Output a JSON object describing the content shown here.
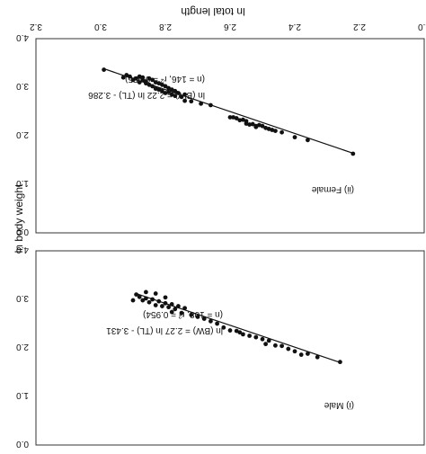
{
  "chart_data": {
    "type": "scatter",
    "xlabel": "ln total length",
    "ylabel": "ln body weight",
    "xlim": [
      2.0,
      3.2
    ],
    "x_ticks": [
      "2.0",
      "2.2",
      "2.4",
      "2.6",
      "2.8",
      "3.0",
      "3.2"
    ],
    "panels": [
      {
        "label": "(ii) Female",
        "equation": "ln (BW) = 2.22 ln (TL) - 3.286",
        "stats": "(n = 146, r² = 0.955)",
        "ylim": [
          0,
          4.0
        ],
        "y_ticks": [
          "0.0",
          "1.0",
          "2.0",
          "3.0",
          "4.0"
        ],
        "line": {
          "x": [
            2.22,
            2.99
          ],
          "y": [
            1.64,
            3.38
          ]
        },
        "series": [
          {
            "values": [
              [
                2.22,
                1.63
              ],
              [
                2.36,
                1.91
              ],
              [
                2.4,
                1.97
              ],
              [
                2.44,
                2.07
              ],
              [
                2.46,
                2.1
              ],
              [
                2.47,
                2.12
              ],
              [
                2.48,
                2.14
              ],
              [
                2.49,
                2.16
              ],
              [
                2.5,
                2.2
              ],
              [
                2.51,
                2.22
              ],
              [
                2.52,
                2.2
              ],
              [
                2.53,
                2.24
              ],
              [
                2.54,
                2.23
              ],
              [
                2.55,
                2.3
              ],
              [
                2.56,
                2.33
              ],
              [
                2.57,
                2.32
              ],
              [
                2.58,
                2.36
              ],
              [
                2.59,
                2.38
              ],
              [
                2.6,
                2.38
              ],
              [
                2.55,
                2.25
              ],
              [
                2.52,
                2.18
              ],
              [
                2.66,
                2.63
              ],
              [
                2.69,
                2.66
              ],
              [
                2.72,
                2.71
              ],
              [
                2.74,
                2.85
              ],
              [
                2.74,
                2.72
              ],
              [
                2.75,
                2.8
              ],
              [
                2.76,
                2.88
              ],
              [
                2.77,
                2.82
              ],
              [
                2.77,
                2.92
              ],
              [
                2.78,
                2.85
              ],
              [
                2.78,
                2.95
              ],
              [
                2.79,
                2.9
              ],
              [
                2.79,
                2.98
              ],
              [
                2.8,
                2.88
              ],
              [
                2.8,
                3.02
              ],
              [
                2.81,
                2.92
              ],
              [
                2.81,
                3.05
              ],
              [
                2.82,
                2.95
              ],
              [
                2.82,
                3.08
              ],
              [
                2.83,
                2.97
              ],
              [
                2.83,
                3.1
              ],
              [
                2.84,
                3.02
              ],
              [
                2.84,
                3.15
              ],
              [
                2.85,
                3.05
              ],
              [
                2.85,
                3.18
              ],
              [
                2.86,
                3.08
              ],
              [
                2.86,
                3.12
              ],
              [
                2.87,
                3.15
              ],
              [
                2.87,
                3.2
              ],
              [
                2.88,
                3.1
              ],
              [
                2.88,
                3.22
              ],
              [
                2.89,
                3.18
              ],
              [
                2.9,
                3.15
              ],
              [
                2.91,
                3.22
              ],
              [
                2.92,
                3.25
              ],
              [
                2.93,
                3.2
              ],
              [
                2.99,
                3.36
              ]
            ]
          }
        ]
      },
      {
        "label": "(i) Male",
        "equation": "ln (BW) = 2.27 ln (TL) - 3.431",
        "stats": "(n = 108, r² = 0.954)",
        "ylim": [
          0,
          4.0
        ],
        "y_ticks": [
          "0.0",
          "1.0",
          "2.0",
          "3.0",
          "4.0"
        ],
        "line": {
          "x": [
            2.26,
            2.89
          ],
          "y": [
            1.7,
            3.12
          ]
        },
        "series": [
          {
            "values": [
              [
                2.26,
                1.71
              ],
              [
                2.33,
                1.81
              ],
              [
                2.36,
                1.88
              ],
              [
                2.38,
                1.86
              ],
              [
                2.4,
                1.93
              ],
              [
                2.42,
                1.98
              ],
              [
                2.44,
                2.04
              ],
              [
                2.46,
                2.05
              ],
              [
                2.48,
                2.15
              ],
              [
                2.49,
                2.08
              ],
              [
                2.5,
                2.18
              ],
              [
                2.52,
                2.22
              ],
              [
                2.54,
                2.25
              ],
              [
                2.56,
                2.28
              ],
              [
                2.57,
                2.32
              ],
              [
                2.58,
                2.35
              ],
              [
                2.6,
                2.36
              ],
              [
                2.62,
                2.42
              ],
              [
                2.64,
                2.5
              ],
              [
                2.66,
                2.55
              ],
              [
                2.68,
                2.6
              ],
              [
                2.7,
                2.64
              ],
              [
                2.72,
                2.68
              ],
              [
                2.74,
                2.82
              ],
              [
                2.75,
                2.72
              ],
              [
                2.76,
                2.86
              ],
              [
                2.77,
                2.8
              ],
              [
                2.78,
                2.9
              ],
              [
                2.79,
                2.84
              ],
              [
                2.8,
                2.92
              ],
              [
                2.81,
                2.86
              ],
              [
                2.82,
                2.96
              ],
              [
                2.83,
                2.88
              ],
              [
                2.84,
                3.0
              ],
              [
                2.85,
                2.94
              ],
              [
                2.86,
                3.02
              ],
              [
                2.87,
                2.98
              ],
              [
                2.88,
                3.05
              ],
              [
                2.89,
                3.1
              ],
              [
                2.83,
                3.12
              ],
              [
                2.86,
                3.15
              ],
              [
                2.8,
                3.04
              ],
              [
                2.78,
                2.74
              ],
              [
                2.9,
                2.98
              ]
            ]
          }
        ]
      }
    ]
  }
}
